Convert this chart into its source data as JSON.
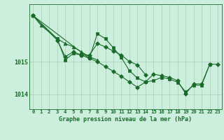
{
  "title": "Graphe pression niveau de la mer (hPa)",
  "bg_color": "#cceedd",
  "grid_color": "#aaccbb",
  "line_color": "#1a6b2a",
  "marker_color": "#1a6b2a",
  "xlim": [
    -0.5,
    23.5
  ],
  "ylim": [
    1013.55,
    1016.75
  ],
  "yticks": [
    1014,
    1015
  ],
  "xticks": [
    0,
    1,
    2,
    3,
    4,
    5,
    6,
    7,
    8,
    9,
    10,
    11,
    12,
    13,
    14,
    15,
    16,
    17,
    18,
    19,
    20,
    21,
    22,
    23
  ],
  "series": [
    {
      "x": [
        0,
        1,
        3,
        4,
        5,
        6,
        7,
        8
      ],
      "y": [
        1016.4,
        1016.1,
        1015.7,
        1015.55,
        1015.45,
        1015.3,
        1015.15,
        1015.05
      ],
      "marker": "^",
      "ms": 3.5
    },
    {
      "x": [
        0,
        3,
        4,
        5,
        6,
        7,
        8,
        9,
        10,
        11,
        12,
        13,
        14
      ],
      "y": [
        1016.4,
        1015.65,
        1015.15,
        1015.3,
        1015.2,
        1015.2,
        1015.55,
        1015.45,
        1015.32,
        1015.2,
        1015.0,
        1014.9,
        1014.6
      ],
      "marker": "D",
      "ms": 3
    },
    {
      "x": [
        0,
        3,
        4,
        5,
        6,
        7,
        8,
        9,
        10,
        11,
        12,
        13,
        14,
        15,
        16,
        17,
        18,
        19,
        20,
        21,
        22
      ],
      "y": [
        1016.4,
        1015.7,
        1015.05,
        1015.25,
        1015.2,
        1015.1,
        1015.85,
        1015.7,
        1015.42,
        1015.12,
        1014.72,
        1014.5,
        1014.38,
        1014.42,
        1014.52,
        1014.47,
        1014.37,
        1014.08,
        1014.28,
        1014.28,
        1014.92
      ],
      "marker": "s",
      "ms": 3
    },
    {
      "x": [
        0,
        7,
        8,
        9,
        10,
        11,
        12,
        13,
        14,
        15,
        16,
        17,
        18,
        19,
        20,
        21,
        22,
        23
      ],
      "y": [
        1016.4,
        1015.1,
        1015.0,
        1014.85,
        1014.7,
        1014.55,
        1014.38,
        1014.22,
        1014.38,
        1014.62,
        1014.57,
        1014.52,
        1014.42,
        1014.02,
        1014.32,
        1014.32,
        1014.92,
        1014.92
      ],
      "marker": "D",
      "ms": 3
    }
  ],
  "xlabel_fontsize": 6.0,
  "tick_fontsize": 5.2,
  "ytick_fontsize": 6.0
}
